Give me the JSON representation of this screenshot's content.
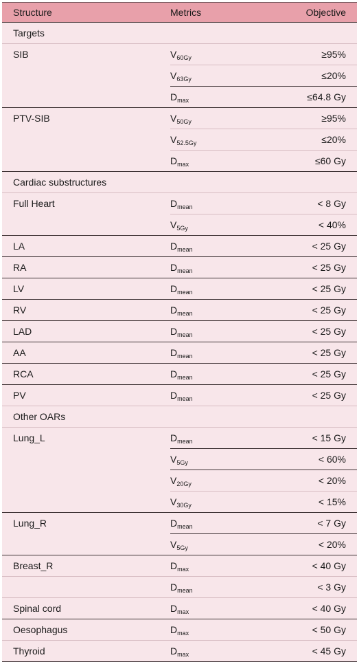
{
  "header": {
    "structure": "Structure",
    "metrics": "Metrics",
    "objective": "Objective"
  },
  "sections": {
    "targets": "Targets",
    "cardiac": "Cardiac substructures",
    "other": "Other OARs"
  },
  "rows": [
    {
      "structure": "SIB",
      "metric": "V",
      "sub": "60Gy",
      "objective": "≥95%"
    },
    {
      "structure": "",
      "metric": "V",
      "sub": "63Gy",
      "objective": "≤20%"
    },
    {
      "structure": "",
      "metric": "D",
      "sub": "max",
      "objective": "≤64.8 Gy"
    },
    {
      "structure": "PTV-SIB",
      "metric": "V",
      "sub": "50Gy",
      "objective": "≥95%"
    },
    {
      "structure": "",
      "metric": "V",
      "sub": "52.5Gy",
      "objective": "≤20%"
    },
    {
      "structure": "",
      "metric": "D",
      "sub": "max",
      "objective": "≤60 Gy"
    },
    {
      "structure": "Full Heart",
      "metric": "D",
      "sub": "mean",
      "objective": "< 8 Gy"
    },
    {
      "structure": "",
      "metric": "V",
      "sub": "5Gy",
      "objective": "< 40%"
    },
    {
      "structure": "LA",
      "metric": "D",
      "sub": "mean",
      "objective": "< 25 Gy"
    },
    {
      "structure": "RA",
      "metric": "D",
      "sub": "mean",
      "objective": "< 25 Gy"
    },
    {
      "structure": "LV",
      "metric": "D",
      "sub": "mean",
      "objective": "< 25 Gy"
    },
    {
      "structure": "RV",
      "metric": "D",
      "sub": "mean",
      "objective": "< 25 Gy"
    },
    {
      "structure": "LAD",
      "metric": "D",
      "sub": "mean",
      "objective": "< 25 Gy"
    },
    {
      "structure": "AA",
      "metric": "D",
      "sub": "mean",
      "objective": "< 25 Gy"
    },
    {
      "structure": "RCA",
      "metric": "D",
      "sub": "mean",
      "objective": "< 25 Gy"
    },
    {
      "structure": "PV",
      "metric": "D",
      "sub": "mean",
      "objective": "< 25 Gy"
    },
    {
      "structure": "Lung_L",
      "metric": "D",
      "sub": "mean",
      "objective": "< 15 Gy"
    },
    {
      "structure": "",
      "metric": "V",
      "sub": "5Gy",
      "objective": "< 60%"
    },
    {
      "structure": "",
      "metric": "V",
      "sub": "20Gy",
      "objective": "< 20%"
    },
    {
      "structure": "",
      "metric": "V",
      "sub": "30Gy",
      "objective": "< 15%"
    },
    {
      "structure": "Lung_R",
      "metric": "D",
      "sub": "mean",
      "objective": "< 7 Gy"
    },
    {
      "structure": "",
      "metric": "V",
      "sub": "5Gy",
      "objective": "< 20%"
    },
    {
      "structure": "Breast_R",
      "metric": "D",
      "sub": "max",
      "objective": "< 40 Gy"
    },
    {
      "structure": "",
      "metric": "D",
      "sub": "mean",
      "objective": "< 3 Gy"
    },
    {
      "structure": "Spinal cord",
      "metric": "D",
      "sub": "max",
      "objective": "< 40 Gy"
    },
    {
      "structure": "Oesophagus",
      "metric": "D",
      "sub": "max",
      "objective": "< 50 Gy"
    },
    {
      "structure": "Thyroid",
      "metric": "D",
      "sub": "max",
      "objective": "< 45 Gy"
    }
  ]
}
